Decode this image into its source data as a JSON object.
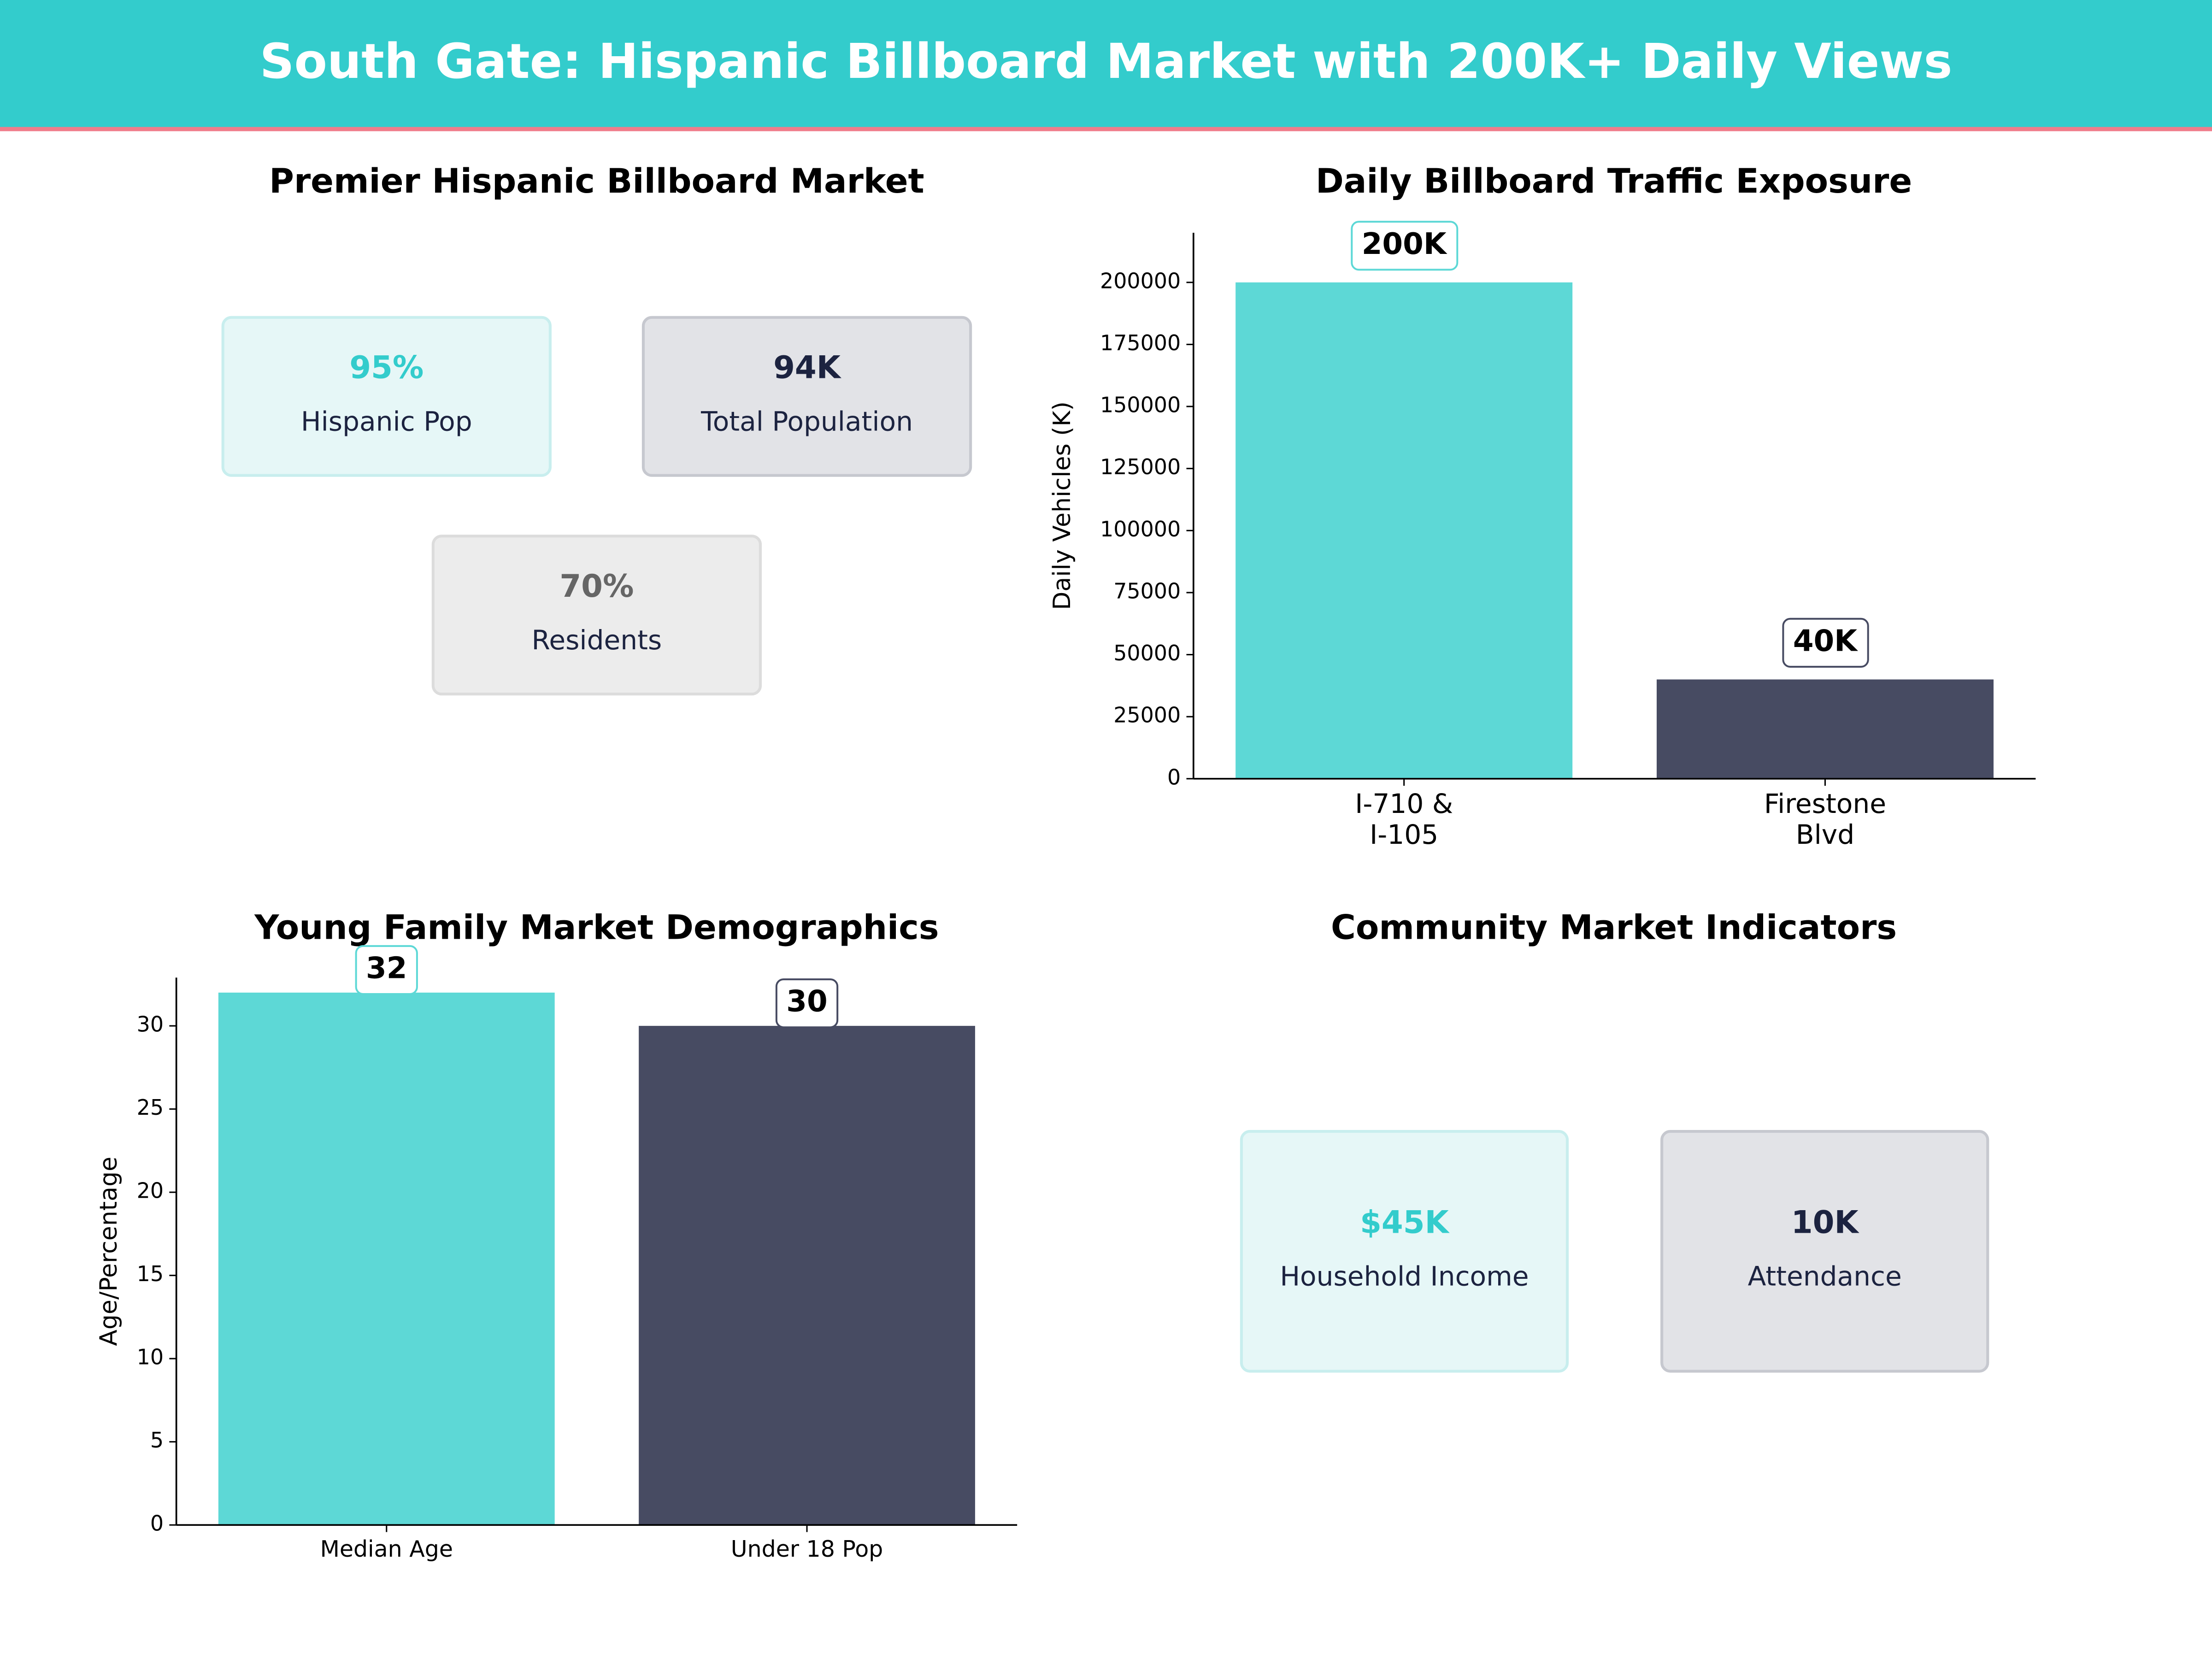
{
  "header": {
    "title": "South Gate: Hispanic Billboard Market with 200K+ Daily Views",
    "background": "#33cccc",
    "accent": "#f07c8a"
  },
  "chart_data": [
    {
      "type": "cards",
      "title": "Premier Hispanic Billboard Market",
      "cards": [
        {
          "value": "95%",
          "label": "Hispanic Pop",
          "color": "#33cccc",
          "background": "#e6f7f7",
          "border": "#c8eeee"
        },
        {
          "value": "94K",
          "label": "Total Population",
          "color": "#1c2340",
          "background": "#e2e3e7",
          "border": "#c6c8cf"
        },
        {
          "value": "70%",
          "label": "Residents",
          "color": "#666666",
          "background": "#ececec",
          "border": "#dcdcdc"
        }
      ]
    },
    {
      "type": "bar",
      "title": "Daily Billboard Traffic Exposure",
      "ylabel": "Daily Vehicles (K)",
      "categories": [
        "I-710 &\nI-105",
        "Firestone\nBlvd"
      ],
      "values": [
        200000,
        40000
      ],
      "value_labels": [
        "200K",
        "40K"
      ],
      "colors": [
        "#5dd8d6",
        "#474b62"
      ],
      "ylim": [
        0,
        220000
      ],
      "yticks": [
        0,
        25000,
        50000,
        75000,
        100000,
        125000,
        150000,
        175000,
        200000
      ]
    },
    {
      "type": "bar",
      "title": "Young Family Market Demographics",
      "ylabel": "Age/Percentage",
      "categories": [
        "Median Age",
        "Under 18 Pop"
      ],
      "values": [
        32,
        30
      ],
      "colors": [
        "#5dd8d6",
        "#474b62"
      ],
      "ylim": [
        0,
        32.9
      ],
      "yticks": [
        0,
        5,
        10,
        15,
        20,
        25,
        30
      ]
    },
    {
      "type": "cards",
      "title": "Community Market Indicators",
      "cards": [
        {
          "value": "$45K",
          "label": "Household Income",
          "color": "#33cccc",
          "background": "#e6f7f7",
          "border": "#c8eeee"
        },
        {
          "value": "10K",
          "label": "Attendance",
          "color": "#1c2340",
          "background": "#e2e3e7",
          "border": "#c6c8cf"
        }
      ]
    }
  ]
}
